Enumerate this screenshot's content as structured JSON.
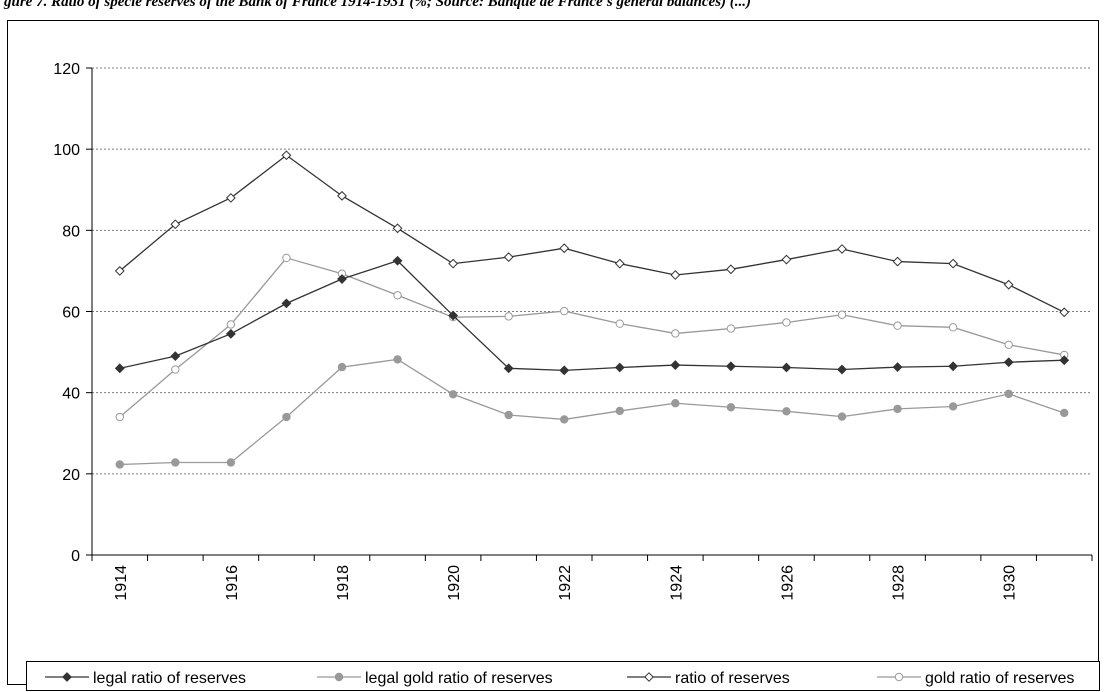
{
  "caption": "gure 7. Ratio of specie reserves of the Bank of France 1914-1931 (%; Source: Banque de France's general balances) (...)",
  "chart_data": {
    "type": "line",
    "title": "",
    "xlabel": "",
    "ylabel": "",
    "x": [
      1914,
      1915,
      1916,
      1917,
      1918,
      1919,
      1920,
      1921,
      1922,
      1923,
      1924,
      1925,
      1926,
      1927,
      1928,
      1929,
      1930,
      1931
    ],
    "x_tick_labels": [
      "1914",
      "1916",
      "1918",
      "1920",
      "1922",
      "1924",
      "1926",
      "1928",
      "1930"
    ],
    "y_tick_labels": [
      "0",
      "20",
      "40",
      "60",
      "80",
      "100",
      "120"
    ],
    "ylim": [
      0,
      120
    ],
    "grid": "horizontal dotted",
    "legend_position": "bottom",
    "series": [
      {
        "name": "legal ratio of reserves",
        "color": "#333333",
        "marker": "filled-diamond",
        "values": [
          46,
          49,
          54.5,
          62,
          68,
          72.5,
          59,
          46,
          45.5,
          46.2,
          46.8,
          46.5,
          46.2,
          45.7,
          46.3,
          46.5,
          47.5,
          48
        ]
      },
      {
        "name": "legal gold ratio of reserves",
        "color": "#999999",
        "marker": "filled-circle",
        "values": [
          22.3,
          22.8,
          22.8,
          34,
          46.3,
          48.2,
          39.6,
          34.5,
          33.4,
          35.5,
          37.4,
          36.4,
          35.4,
          34.1,
          36,
          36.6,
          39.7,
          35
        ]
      },
      {
        "name": "ratio of reserves",
        "color": "#333333",
        "marker": "open-diamond",
        "values": [
          70,
          81.5,
          88,
          98.5,
          88.5,
          80.5,
          71.8,
          73.4,
          75.6,
          71.8,
          69,
          70.4,
          72.8,
          75.4,
          72.3,
          71.8,
          66.6,
          59.8
        ]
      },
      {
        "name": "gold ratio of reserves",
        "color": "#999999",
        "marker": "open-circle",
        "values": [
          34,
          45.7,
          56.8,
          73.2,
          69.3,
          64,
          58.6,
          58.8,
          60.1,
          57,
          54.6,
          55.8,
          57.3,
          59.2,
          56.5,
          56.1,
          51.8,
          49.3
        ]
      }
    ]
  }
}
